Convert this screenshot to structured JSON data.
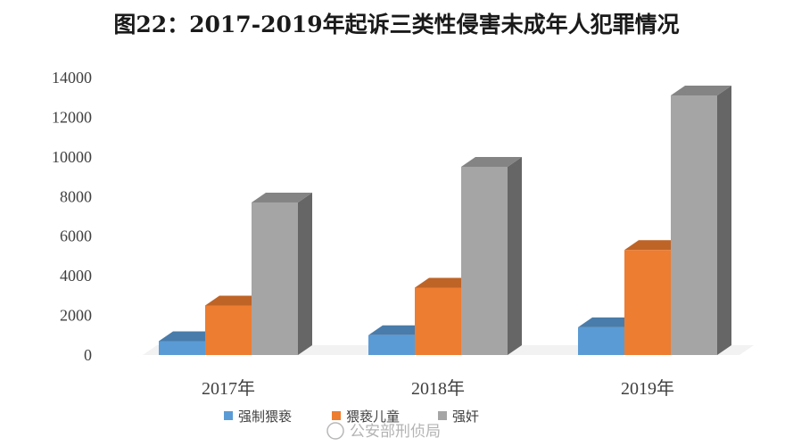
{
  "chart_data": {
    "type": "bar",
    "style": "3d-clustered-column",
    "title": "图22：2017-2019年起诉三类性侵害未成年人犯罪情况",
    "categories": [
      "2017年",
      "2018年",
      "2019年"
    ],
    "series": [
      {
        "name": "强制猥亵",
        "color": "#5b9bd5",
        "values": [
          700,
          1000,
          1400
        ]
      },
      {
        "name": "猥亵儿童",
        "color": "#ed7d31",
        "values": [
          2500,
          3400,
          5300
        ]
      },
      {
        "name": "强奸",
        "color": "#a5a5a5",
        "values": [
          7700,
          9500,
          13100
        ]
      }
    ],
    "yticks": [
      0,
      2000,
      4000,
      6000,
      8000,
      10000,
      12000,
      14000
    ],
    "ylim": [
      0,
      14000
    ],
    "grid": false,
    "legend_position": "bottom"
  },
  "watermark": "公安部刑侦局"
}
